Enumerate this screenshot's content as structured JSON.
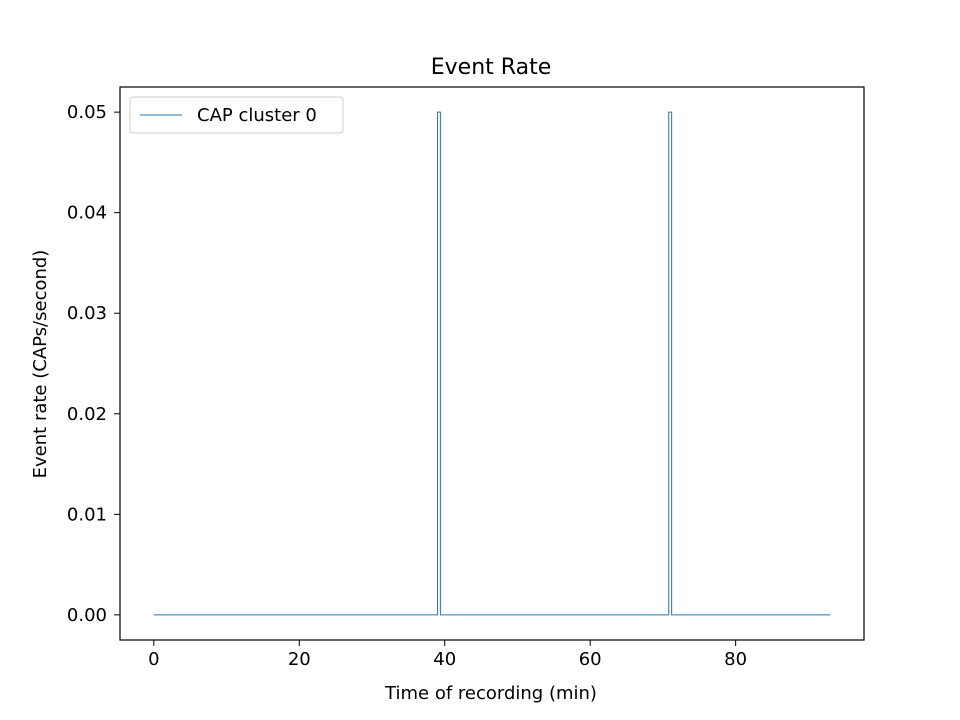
{
  "chart_data": {
    "type": "line",
    "title": "Event Rate",
    "xlabel": "Time of recording (min)",
    "ylabel": "Event rate (CAPs/second)",
    "xlim": [
      -4.65,
      97.65
    ],
    "ylim": [
      -0.0025,
      0.0525
    ],
    "xticks": [
      0,
      20,
      40,
      60,
      80
    ],
    "xtick_labels": [
      "0",
      "20",
      "40",
      "60",
      "80"
    ],
    "yticks": [
      0,
      0.01,
      0.02,
      0.03,
      0.04,
      0.05
    ],
    "ytick_labels": [
      "0.00",
      "0.01",
      "0.02",
      "0.03",
      "0.04",
      "0.05"
    ],
    "grid": false,
    "legend": {
      "position": "top-left"
    },
    "series": [
      {
        "name": "CAP cluster 0",
        "color": "#1f77b4",
        "step": "post",
        "x": [
          0,
          39.0,
          39.4,
          70.8,
          71.2,
          93.0
        ],
        "y": [
          0,
          0.05,
          0,
          0.05,
          0,
          0
        ]
      }
    ]
  }
}
